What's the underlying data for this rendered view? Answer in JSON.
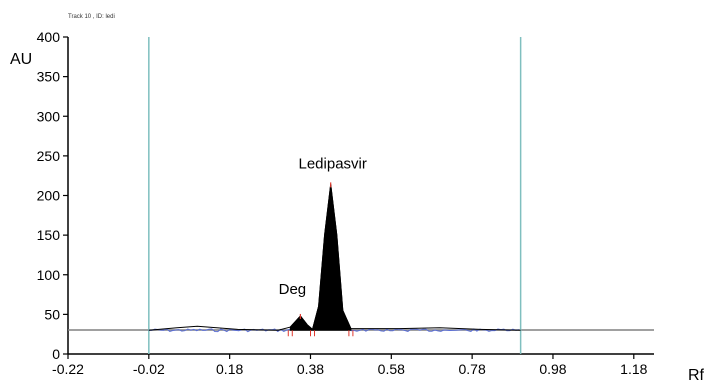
{
  "header": {
    "track_label": "Track 10 , ID: ledi"
  },
  "chart_data": {
    "type": "line",
    "xlabel": "Rf",
    "ylabel": "AU",
    "xlim": [
      -0.22,
      1.23
    ],
    "ylim": [
      0,
      400
    ],
    "x_ticks": [
      -0.22,
      -0.02,
      0.18,
      0.38,
      0.58,
      0.78,
      0.98,
      1.18
    ],
    "x_tick_labels": [
      "-0.22",
      "-0.02",
      "0.18",
      "0.38",
      "0.58",
      "0.78",
      "0.98",
      "1.18"
    ],
    "y_ticks": [
      0,
      50,
      100,
      150,
      200,
      250,
      300,
      350,
      400
    ],
    "y_tick_labels": [
      "0",
      "50",
      "100",
      "150",
      "200",
      "250",
      "300",
      "350",
      "400"
    ],
    "baseline_au": 30,
    "vertical_markers_rf": [
      -0.02,
      0.9
    ],
    "series": [
      {
        "values": [
          {
            "x": -0.02,
            "y": 30
          },
          {
            "x": 0.05,
            "y": 33
          },
          {
            "x": 0.1,
            "y": 35
          },
          {
            "x": 0.2,
            "y": 31
          },
          {
            "x": 0.3,
            "y": 30
          },
          {
            "x": 0.33,
            "y": 34
          },
          {
            "x": 0.355,
            "y": 48
          },
          {
            "x": 0.372,
            "y": 37
          },
          {
            "x": 0.385,
            "y": 31
          },
          {
            "x": 0.4,
            "y": 60
          },
          {
            "x": 0.415,
            "y": 150
          },
          {
            "x": 0.43,
            "y": 214
          },
          {
            "x": 0.445,
            "y": 150
          },
          {
            "x": 0.46,
            "y": 55
          },
          {
            "x": 0.48,
            "y": 32
          },
          {
            "x": 0.6,
            "y": 32
          },
          {
            "x": 0.7,
            "y": 33
          },
          {
            "x": 0.8,
            "y": 31
          },
          {
            "x": 0.9,
            "y": 30
          }
        ]
      }
    ],
    "annotations": [
      {
        "text": "Ledipasvir",
        "x": 0.43,
        "y": 214
      },
      {
        "text": "Deg",
        "x": 0.355,
        "y": 48
      }
    ]
  }
}
